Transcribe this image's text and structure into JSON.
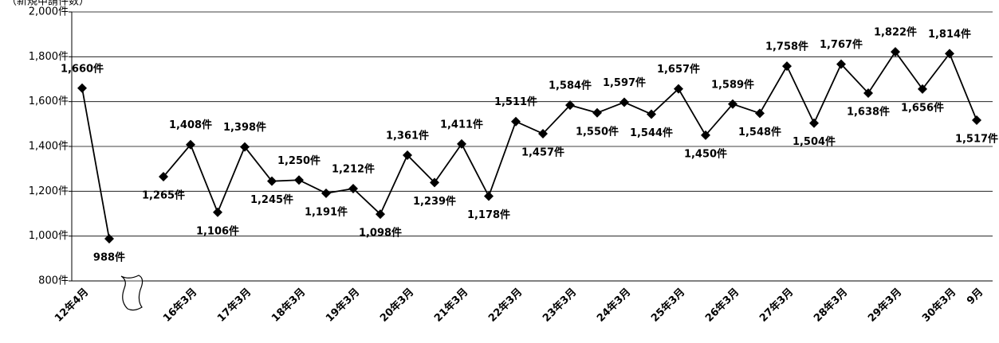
{
  "chart_data": {
    "type": "line",
    "subtitle": "（新規申請件数）",
    "categories": [
      "12年4月",
      null,
      null,
      null,
      "16年3月",
      null,
      "17年3月",
      null,
      "18年3月",
      null,
      "19年3月",
      null,
      "20年3月",
      null,
      "21年3月",
      null,
      "22年3月",
      null,
      "23年3月",
      null,
      "24年3月",
      null,
      "25年3月",
      null,
      "26年3月",
      null,
      "27年3月",
      null,
      "28年3月",
      null,
      "29年3月",
      null,
      "30年3月",
      "9月"
    ],
    "series": [
      {
        "color": "#000000",
        "values": [
          1660,
          988,
          null,
          1265,
          1408,
          1106,
          1398,
          1245,
          1250,
          1191,
          1212,
          1098,
          1361,
          1239,
          1411,
          1178,
          1511,
          1457,
          1584,
          1550,
          1597,
          1544,
          1657,
          1450,
          1589,
          1548,
          1758,
          1504,
          1767,
          1638,
          1822,
          1656,
          1814,
          1517
        ],
        "value_labels": [
          "1,660件",
          "988件",
          null,
          "1,265件",
          "1,408件",
          "1,106件",
          "1,398件",
          "1,245件",
          "1,250件",
          "1,191件",
          "1,212件",
          "1,098件",
          "1,361件",
          "1,239件",
          "1,411件",
          "1,178件",
          "1,511件",
          "1,457件",
          "1,584件",
          "1,550件",
          "1,597件",
          "1,544件",
          "1,657件",
          "1,450件",
          "1,589件",
          "1,548件",
          "1,758件",
          "1,504件",
          "1,767件",
          "1,638件",
          "1,822件",
          "1,656件",
          "1,814件",
          "1,517件"
        ]
      }
    ],
    "ylim": [
      800,
      2000
    ],
    "yticks": [
      {
        "value": 800,
        "label": "800件"
      },
      {
        "value": 1000,
        "label": "1,000件"
      },
      {
        "value": 1200,
        "label": "1,200件"
      },
      {
        "value": 1400,
        "label": "1,400件"
      },
      {
        "value": 1600,
        "label": "1,600件"
      },
      {
        "value": 1800,
        "label": "1,800件"
      },
      {
        "value": 2000,
        "label": "2,000件"
      }
    ],
    "grid": true
  }
}
